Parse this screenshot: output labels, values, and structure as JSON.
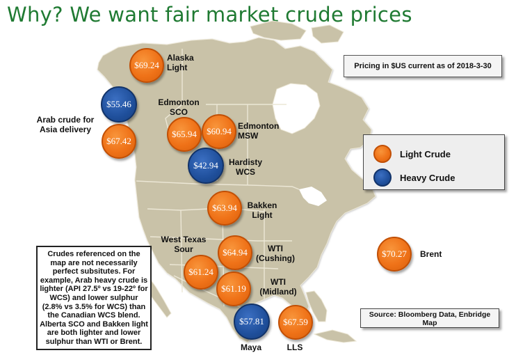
{
  "title": "Why? We want fair market crude prices",
  "pricing_note": "Pricing in $US current as of 2018-3-30",
  "legend": {
    "light": {
      "label": "Light Crude",
      "color": "#ef7218"
    },
    "heavy": {
      "label": "Heavy Crude",
      "color": "#1f4f9b"
    }
  },
  "crudes": {
    "alaska": {
      "price": "$69.24",
      "label_1": "Alaska",
      "label_2": "Light",
      "type": "light"
    },
    "arab_heavy": {
      "price": "$55.46",
      "type": "heavy"
    },
    "arab_light": {
      "price": "$67.42",
      "type": "light"
    },
    "arab_label_1": "Arab crude for",
    "arab_label_2": "Asia delivery",
    "edmonton_sco": {
      "price": "$65.94",
      "label_1": "Edmonton",
      "label_2": "SCO",
      "type": "light"
    },
    "edmonton_msw": {
      "price": "$60.94",
      "label_1": "Edmonton",
      "label_2": "MSW",
      "type": "light"
    },
    "hardisty": {
      "price": "$42.94",
      "label_1": "Hardisty",
      "label_2": "WCS",
      "type": "heavy"
    },
    "bakken": {
      "price": "$63.94",
      "label_1": "Bakken",
      "label_2": "Light",
      "type": "light"
    },
    "wts": {
      "price": "$61.24",
      "label_1": "West Texas",
      "label_2": "Sour",
      "type": "light"
    },
    "wti_cushing": {
      "price": "$64.94",
      "label_1": "WTI",
      "label_2": "(Cushing)",
      "type": "light"
    },
    "wti_midland": {
      "price": "$61.19",
      "label_1": "WTI",
      "label_2": "(Midland)",
      "type": "light"
    },
    "maya": {
      "price": "$57.81",
      "label_1": "Maya",
      "type": "heavy"
    },
    "lls": {
      "price": "$67.59",
      "label_1": "LLS",
      "type": "light"
    },
    "brent": {
      "price": "$70.27",
      "label_1": "Brent",
      "type": "light"
    }
  },
  "note": "Crudes referenced on the map are not necessarily perfect subsitutes. For example, Arab heavy crude is lighter (API 27.5º vs 19-22º for WCS) and lower sulphur (2.8% vs 3.5% for WCS) than the Canadian WCS blend. Alberta SCO and Bakken light are both lighter and lower sulphur than WTI or Brent.",
  "source": "Source: Bloomberg Data, Enbridge Map",
  "colors": {
    "land": "#c9c2a8",
    "land_stroke": "#e6e1cf",
    "ocean": "#ffffff",
    "title": "#1f7a32"
  }
}
